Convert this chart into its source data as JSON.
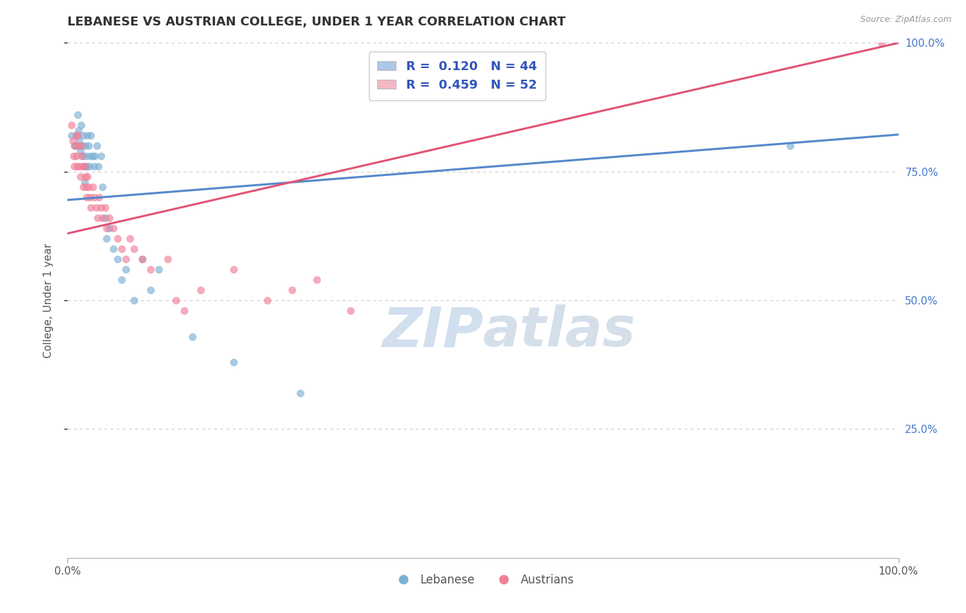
{
  "title": "LEBANESE VS AUSTRIAN COLLEGE, UNDER 1 YEAR CORRELATION CHART",
  "source": "Source: ZipAtlas.com",
  "ylabel": "College, Under 1 year",
  "xlim": [
    0.0,
    1.0
  ],
  "ylim": [
    0.0,
    1.0
  ],
  "legend_blue_label": "R =  0.120   N = 44",
  "legend_pink_label": "R =  0.459   N = 52",
  "legend_bottom_blue": "Lebanese",
  "legend_bottom_pink": "Austrians",
  "blue_color": "#aec6e8",
  "pink_color": "#f5b8c4",
  "blue_scatter_color": "#7bafd4",
  "pink_scatter_color": "#f08098",
  "blue_line_color": "#5588cc",
  "pink_line_color": "#e05575",
  "legend_r_color": "#3355bb",
  "watermark_color": "#ccdcee",
  "blue_trend_start_y": 0.695,
  "blue_trend_end_y": 0.822,
  "pink_trend_start_y": 0.63,
  "pink_trend_end_y": 1.0,
  "blue_points": [
    [
      0.005,
      0.82
    ],
    [
      0.008,
      0.8
    ],
    [
      0.01,
      0.82
    ],
    [
      0.01,
      0.8
    ],
    [
      0.012,
      0.86
    ],
    [
      0.013,
      0.83
    ],
    [
      0.014,
      0.81
    ],
    [
      0.015,
      0.79
    ],
    [
      0.016,
      0.84
    ],
    [
      0.017,
      0.8
    ],
    [
      0.018,
      0.78
    ],
    [
      0.019,
      0.82
    ],
    [
      0.02,
      0.76
    ],
    [
      0.02,
      0.73
    ],
    [
      0.021,
      0.8
    ],
    [
      0.022,
      0.78
    ],
    [
      0.023,
      0.76
    ],
    [
      0.024,
      0.82
    ],
    [
      0.025,
      0.8
    ],
    [
      0.026,
      0.76
    ],
    [
      0.027,
      0.78
    ],
    [
      0.028,
      0.82
    ],
    [
      0.03,
      0.78
    ],
    [
      0.032,
      0.76
    ],
    [
      0.033,
      0.78
    ],
    [
      0.035,
      0.8
    ],
    [
      0.037,
      0.76
    ],
    [
      0.04,
      0.78
    ],
    [
      0.042,
      0.72
    ],
    [
      0.045,
      0.66
    ],
    [
      0.047,
      0.62
    ],
    [
      0.05,
      0.64
    ],
    [
      0.055,
      0.6
    ],
    [
      0.06,
      0.58
    ],
    [
      0.065,
      0.54
    ],
    [
      0.07,
      0.56
    ],
    [
      0.08,
      0.5
    ],
    [
      0.09,
      0.58
    ],
    [
      0.1,
      0.52
    ],
    [
      0.11,
      0.56
    ],
    [
      0.15,
      0.43
    ],
    [
      0.2,
      0.38
    ],
    [
      0.28,
      0.32
    ],
    [
      0.87,
      0.8
    ]
  ],
  "pink_points": [
    [
      0.005,
      0.84
    ],
    [
      0.006,
      0.81
    ],
    [
      0.007,
      0.78
    ],
    [
      0.008,
      0.76
    ],
    [
      0.009,
      0.8
    ],
    [
      0.01,
      0.82
    ],
    [
      0.01,
      0.78
    ],
    [
      0.011,
      0.76
    ],
    [
      0.012,
      0.82
    ],
    [
      0.013,
      0.8
    ],
    [
      0.014,
      0.76
    ],
    [
      0.015,
      0.74
    ],
    [
      0.016,
      0.8
    ],
    [
      0.017,
      0.78
    ],
    [
      0.018,
      0.76
    ],
    [
      0.019,
      0.72
    ],
    [
      0.02,
      0.76
    ],
    [
      0.021,
      0.74
    ],
    [
      0.022,
      0.72
    ],
    [
      0.023,
      0.7
    ],
    [
      0.024,
      0.74
    ],
    [
      0.025,
      0.72
    ],
    [
      0.027,
      0.7
    ],
    [
      0.028,
      0.68
    ],
    [
      0.03,
      0.72
    ],
    [
      0.032,
      0.7
    ],
    [
      0.034,
      0.68
    ],
    [
      0.036,
      0.66
    ],
    [
      0.038,
      0.7
    ],
    [
      0.04,
      0.68
    ],
    [
      0.042,
      0.66
    ],
    [
      0.045,
      0.68
    ],
    [
      0.047,
      0.64
    ],
    [
      0.05,
      0.66
    ],
    [
      0.055,
      0.64
    ],
    [
      0.06,
      0.62
    ],
    [
      0.065,
      0.6
    ],
    [
      0.07,
      0.58
    ],
    [
      0.075,
      0.62
    ],
    [
      0.08,
      0.6
    ],
    [
      0.09,
      0.58
    ],
    [
      0.1,
      0.56
    ],
    [
      0.12,
      0.58
    ],
    [
      0.13,
      0.5
    ],
    [
      0.14,
      0.48
    ],
    [
      0.16,
      0.52
    ],
    [
      0.2,
      0.56
    ],
    [
      0.24,
      0.5
    ],
    [
      0.27,
      0.52
    ],
    [
      0.3,
      0.54
    ],
    [
      0.34,
      0.48
    ],
    [
      0.98,
      1.0
    ]
  ],
  "background_color": "#ffffff",
  "grid_color": "#cccccc",
  "title_color": "#333333",
  "axis_label_color": "#555555",
  "tick_label_color_blue": "#4477cc"
}
